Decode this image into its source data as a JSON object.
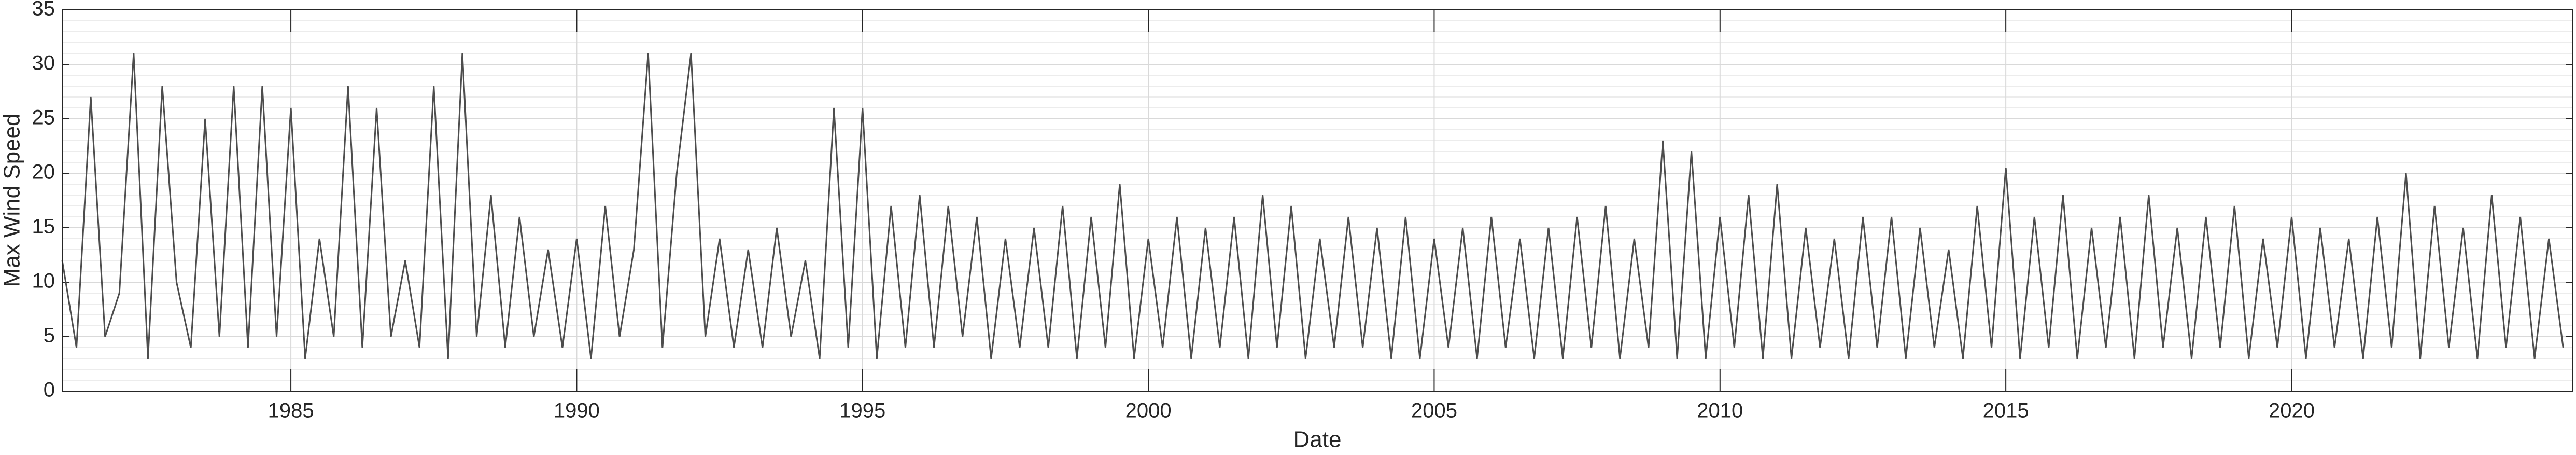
{
  "chart_data": {
    "type": "line",
    "xlabel": "Date",
    "ylabel": "Max Wind Speed",
    "x": [
      1981,
      1981.25,
      1981.5,
      1981.75,
      1982,
      1982.25,
      1982.5,
      1982.75,
      1983,
      1983.25,
      1983.5,
      1983.75,
      1984,
      1984.25,
      1984.5,
      1984.75,
      1985,
      1985.25,
      1985.5,
      1985.75,
      1986,
      1986.25,
      1986.5,
      1986.75,
      1987,
      1987.25,
      1987.5,
      1987.75,
      1988,
      1988.25,
      1988.5,
      1988.75,
      1989,
      1989.25,
      1989.5,
      1989.75,
      1990,
      1990.25,
      1990.5,
      1990.75,
      1991,
      1991.25,
      1991.5,
      1991.75,
      1992,
      1992.25,
      1992.5,
      1992.75,
      1993,
      1993.25,
      1993.5,
      1993.75,
      1994,
      1994.25,
      1994.5,
      1994.75,
      1995,
      1995.25,
      1995.5,
      1995.75,
      1996,
      1996.25,
      1996.5,
      1996.75,
      1997,
      1997.25,
      1997.5,
      1997.75,
      1998,
      1998.25,
      1998.5,
      1998.75,
      1999,
      1999.25,
      1999.5,
      1999.75,
      2000,
      2000.25,
      2000.5,
      2000.75,
      2001,
      2001.25,
      2001.5,
      2001.75,
      2002,
      2002.25,
      2002.5,
      2002.75,
      2003,
      2003.25,
      2003.5,
      2003.75,
      2004,
      2004.25,
      2004.5,
      2004.75,
      2005,
      2005.25,
      2005.5,
      2005.75,
      2006,
      2006.25,
      2006.5,
      2006.75,
      2007,
      2007.25,
      2007.5,
      2007.75,
      2008,
      2008.25,
      2008.5,
      2008.75,
      2009,
      2009.25,
      2009.5,
      2009.75,
      2010,
      2010.25,
      2010.5,
      2010.75,
      2011,
      2011.25,
      2011.5,
      2011.75,
      2012,
      2012.25,
      2012.5,
      2012.75,
      2013,
      2013.25,
      2013.5,
      2013.75,
      2014,
      2014.25,
      2014.5,
      2014.75,
      2015,
      2015.25,
      2015.5,
      2015.75,
      2016,
      2016.25,
      2016.5,
      2016.75,
      2017,
      2017.25,
      2017.5,
      2017.75,
      2018,
      2018.25,
      2018.5,
      2018.75,
      2019,
      2019.25,
      2019.5,
      2019.75,
      2020,
      2020.25,
      2020.5,
      2020.75,
      2021,
      2021.25,
      2021.5,
      2021.75,
      2022,
      2022.25,
      2022.5,
      2022.75,
      2023,
      2023.25,
      2023.5,
      2023.75,
      2024,
      2024.25,
      2024.5,
      2024.75
    ],
    "series": [
      {
        "color": "#4d4d4d",
        "values": [
          12,
          4,
          27,
          5,
          9,
          31,
          3,
          28,
          10,
          4,
          25,
          5,
          28,
          4,
          28,
          5,
          26,
          3,
          14,
          5,
          28,
          4,
          26,
          5,
          12,
          4,
          28,
          3,
          31,
          5,
          18,
          4,
          16,
          5,
          13,
          4,
          14,
          3,
          17,
          5,
          13,
          31,
          4,
          20,
          31,
          5,
          14,
          4,
          13,
          4,
          15,
          5,
          12,
          3,
          26,
          4,
          26,
          3,
          17,
          4,
          18,
          4,
          17,
          5,
          16,
          3,
          14,
          4,
          15,
          4,
          17,
          3,
          16,
          4,
          19,
          3,
          14,
          4,
          16,
          3,
          15,
          4,
          16,
          3,
          18,
          4,
          17,
          3,
          14,
          4,
          16,
          4,
          15,
          3,
          16,
          3,
          14,
          4,
          15,
          3,
          16,
          4,
          14,
          3,
          15,
          3,
          16,
          4,
          17,
          3,
          14,
          4,
          23,
          3,
          22,
          3,
          16,
          4,
          18,
          3,
          19,
          3,
          15,
          4,
          14,
          3,
          16,
          4,
          16,
          3,
          15,
          4,
          13,
          3,
          17,
          4,
          20.5,
          3,
          16,
          4,
          18,
          3,
          15,
          4,
          16,
          3,
          18,
          4,
          15,
          3,
          16,
          4,
          17,
          3,
          14,
          4,
          16,
          3,
          15,
          4,
          14,
          3,
          16,
          4,
          20,
          3,
          17,
          4,
          15,
          3,
          18,
          4,
          16,
          3,
          14,
          4
        ]
      }
    ],
    "xlim": [
      1981,
      2024.92
    ],
    "xticks": [
      1985,
      1990,
      1995,
      2000,
      2005,
      2010,
      2015,
      2020
    ],
    "ylim": [
      0,
      35
    ],
    "yticks": [
      0,
      5,
      10,
      15,
      20,
      25,
      30,
      35
    ],
    "grid": true,
    "minor_grid": true
  }
}
